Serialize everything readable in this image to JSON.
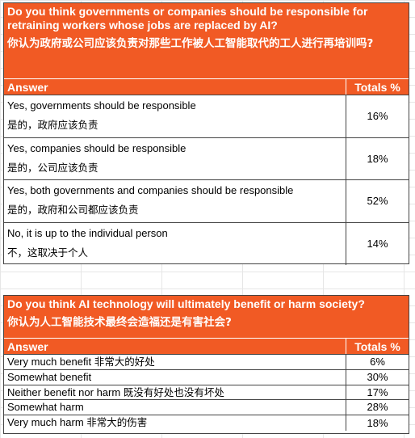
{
  "surveys": [
    {
      "question_en": "Do you think governments or companies should be responsible for retraining workers whose jobs are replaced by AI?",
      "question_zh": "你认为政府或公司应该负责对那些工作被人工智能取代的工人进行再培训吗?",
      "header_answer": "Answer",
      "header_total": "Totals %",
      "rows": [
        {
          "en": "Yes, governments should be responsible",
          "zh": "是的，政府应该负责",
          "total": "16%"
        },
        {
          "en": "Yes, companies should be responsible",
          "zh": "是的，公司应该负责",
          "total": "18%"
        },
        {
          "en": "Yes, both governments and companies should be responsible",
          "zh": "是的，政府和公司都应该负责",
          "total": "52%"
        },
        {
          "en": "No, it is up to the individual person",
          "zh": "不，这取决于个人",
          "total": "14%"
        }
      ]
    },
    {
      "question_en": "Do you think AI technology will ultimately benefit or harm society?",
      "question_zh": "你认为人工智能技术最终会造福还是有害社会?",
      "header_answer": "Answer",
      "header_total": "Totals %",
      "rows": [
        {
          "en": "Very much benefit",
          "zh": "非常大的好处",
          "total": "6%"
        },
        {
          "en": "Somewhat benefit",
          "zh": "",
          "total": "30%"
        },
        {
          "en": "Neither benefit nor harm",
          "zh": "既没有好处也没有坏处",
          "total": "17%"
        },
        {
          "en": "Somewhat harm",
          "zh": "",
          "total": "28%"
        },
        {
          "en": "Very much harm",
          "zh": "非常大的伤害",
          "total": "18%"
        }
      ]
    }
  ],
  "colors": {
    "accent": "#f15a24",
    "border": "#444444",
    "grid": "#e6e6e6"
  }
}
